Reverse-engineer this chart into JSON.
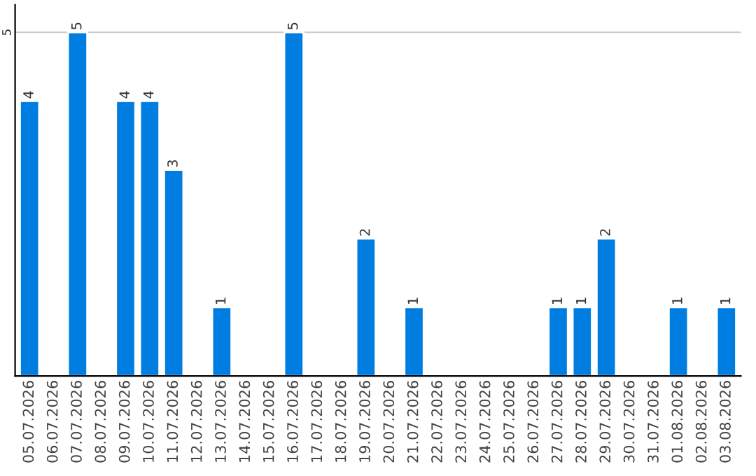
{
  "chart_data": {
    "type": "bar",
    "categories": [
      "05.07.2026",
      "06.07.2026",
      "07.07.2026",
      "08.07.2026",
      "09.07.2026",
      "10.07.2026",
      "11.07.2026",
      "12.07.2026",
      "13.07.2026",
      "14.07.2026",
      "15.07.2026",
      "16.07.2026",
      "17.07.2026",
      "18.07.2026",
      "19.07.2026",
      "20.07.2026",
      "21.07.2026",
      "22.07.2026",
      "23.07.2026",
      "24.07.2026",
      "25.07.2026",
      "26.07.2026",
      "27.07.2026",
      "28.07.2026",
      "29.07.2026",
      "30.07.2026",
      "31.07.2026",
      "01.08.2026",
      "02.08.2026",
      "03.08.2026"
    ],
    "values": [
      4,
      null,
      5,
      null,
      4,
      4,
      3,
      null,
      1,
      null,
      null,
      5,
      null,
      null,
      2,
      null,
      1,
      null,
      null,
      null,
      null,
      null,
      1,
      1,
      2,
      null,
      null,
      1,
      null,
      1
    ],
    "value_labels": [
      "4",
      null,
      "5",
      null,
      "4",
      "4",
      "3",
      null,
      "1",
      null,
      null,
      "5",
      null,
      null,
      "2",
      null,
      "1",
      null,
      null,
      null,
      null,
      null,
      "1",
      "1",
      "2",
      null,
      null,
      "1",
      null,
      "1"
    ],
    "color": "#007de0",
    "ylim": [
      0,
      5.4
    ],
    "yticks": [
      5
    ],
    "grid": "y"
  }
}
